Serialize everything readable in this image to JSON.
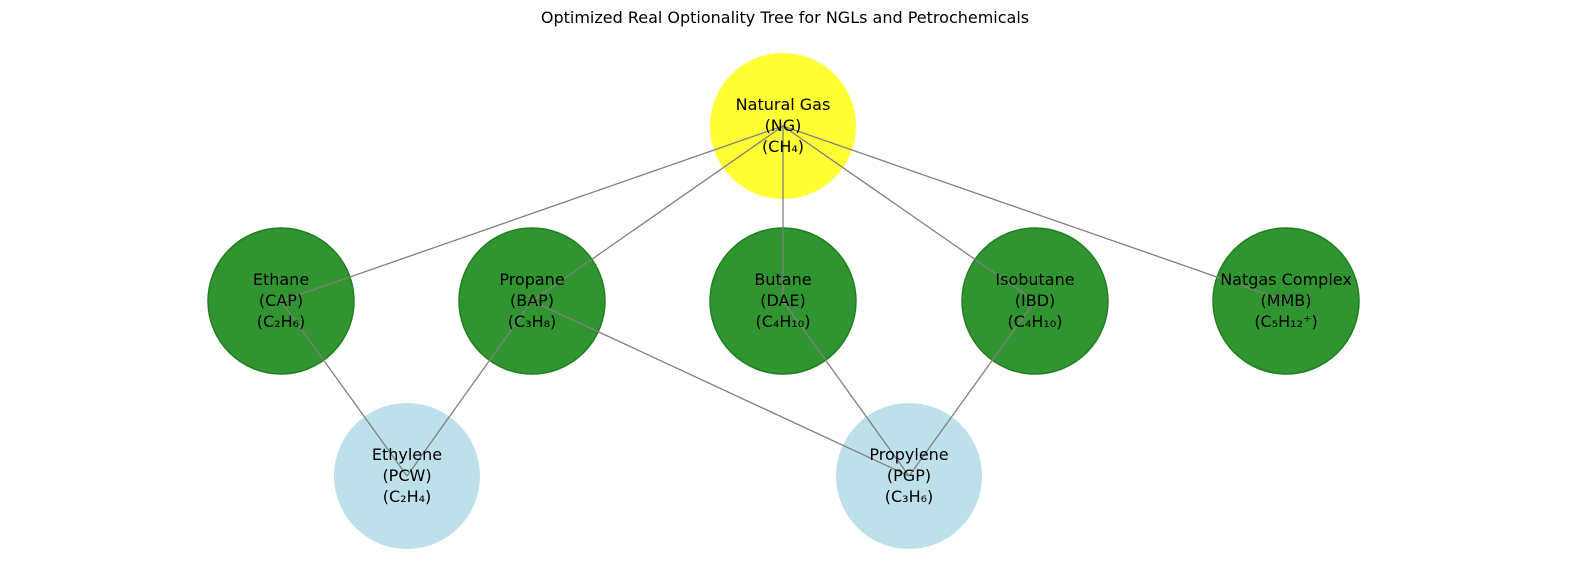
{
  "title": "Optimized Real Optionality Tree for NGLs and Petrochemicals",
  "colors": {
    "root": "#ffff00",
    "ngl": "#1a8a1a",
    "ngl_stroke": "#1f7f1f",
    "petrochemical": "#add8e6",
    "edge": "#808080"
  },
  "nodes": [
    {
      "id": "ng",
      "group": "root",
      "lines": [
        "Natural Gas",
        "(NG)",
        "(CH₄)"
      ]
    },
    {
      "id": "ethane",
      "group": "ngl",
      "lines": [
        "Ethane",
        "(CAP)",
        "(C₂H₆)"
      ]
    },
    {
      "id": "propane",
      "group": "ngl",
      "lines": [
        "Propane",
        "(BAP)",
        "(C₃H₈)"
      ]
    },
    {
      "id": "butane",
      "group": "ngl",
      "lines": [
        "Butane",
        "(DAE)",
        "(C₄H₁₀)"
      ]
    },
    {
      "id": "isobutane",
      "group": "ngl",
      "lines": [
        "Isobutane",
        "(IBD)",
        "(C₄H₁₀)"
      ]
    },
    {
      "id": "natgas-complex",
      "group": "ngl",
      "lines": [
        "Natgas Complex",
        "(MMB)",
        "(C₅H₁₂⁺)"
      ]
    },
    {
      "id": "ethylene",
      "group": "petrochemical",
      "lines": [
        "Ethylene",
        "(PCW)",
        "(C₂H₄)"
      ]
    },
    {
      "id": "propylene",
      "group": "petrochemical",
      "lines": [
        "Propylene",
        "(PGP)",
        "(C₃H₆)"
      ]
    }
  ],
  "edges": [
    [
      "ng",
      "ethane"
    ],
    [
      "ng",
      "propane"
    ],
    [
      "ng",
      "butane"
    ],
    [
      "ng",
      "isobutane"
    ],
    [
      "ng",
      "natgas-complex"
    ],
    [
      "ethane",
      "ethylene"
    ],
    [
      "propane",
      "ethylene"
    ],
    [
      "propane",
      "propylene"
    ],
    [
      "butane",
      "propylene"
    ],
    [
      "isobutane",
      "propylene"
    ]
  ]
}
